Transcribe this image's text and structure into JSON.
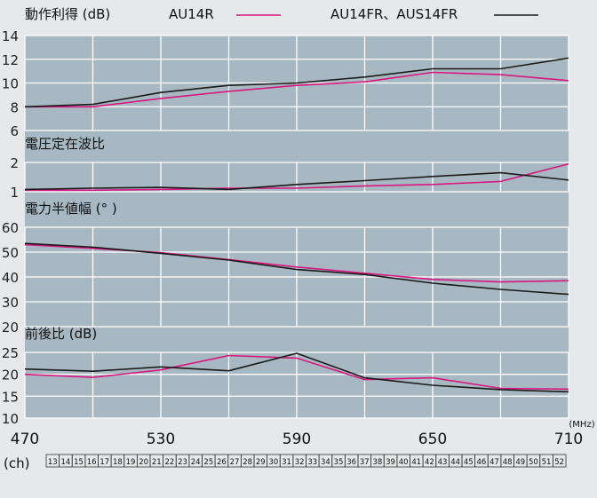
{
  "chart_data": {
    "type": "line",
    "x_label_unit": "(MHz)",
    "x_ticks": [
      470,
      530,
      590,
      650,
      710
    ],
    "x_range": [
      470,
      710
    ],
    "legend": [
      {
        "label": "AU14R",
        "color": "#d8177e"
      },
      {
        "label": "AU14FR、AUS14FR",
        "color": "#1a1a1a"
      }
    ],
    "channel_label": "(ch)",
    "channels": [
      "13",
      "14",
      "15",
      "16",
      "17",
      "18",
      "19",
      "20",
      "21",
      "22",
      "23",
      "24",
      "25",
      "26",
      "27",
      "28",
      "29",
      "30",
      "31",
      "32",
      "33",
      "34",
      "35",
      "36",
      "37",
      "38",
      "39",
      "40",
      "41",
      "42",
      "43",
      "44",
      "45",
      "46",
      "47",
      "48",
      "49",
      "50",
      "51",
      "52"
    ],
    "x": [
      470,
      500,
      530,
      560,
      590,
      620,
      650,
      680,
      710
    ],
    "panels": [
      {
        "title": "動作利得 (dB)",
        "ylim": [
          6,
          14
        ],
        "y_ticks": [
          6,
          8,
          10,
          12,
          14
        ],
        "series": [
          {
            "name": "AU14R",
            "color": "#d8177e",
            "values": [
              8.0,
              8.0,
              8.7,
              9.3,
              9.8,
              10.1,
              10.9,
              10.7,
              10.2
            ]
          },
          {
            "name": "AU14FR、AUS14FR",
            "color": "#1a1a1a",
            "values": [
              8.0,
              8.2,
              9.2,
              9.8,
              10.0,
              10.5,
              11.2,
              11.2,
              12.1
            ]
          }
        ]
      },
      {
        "title": "電圧定在波比",
        "ylim": [
          1,
          2
        ],
        "y_ticks": [
          1,
          2
        ],
        "series": [
          {
            "name": "AU14R",
            "color": "#d8177e",
            "values": [
              1.05,
              1.05,
              1.08,
              1.12,
              1.12,
              1.2,
              1.25,
              1.35,
              1.95
            ]
          },
          {
            "name": "AU14FR、AUS14FR",
            "color": "#1a1a1a",
            "values": [
              1.08,
              1.12,
              1.15,
              1.08,
              1.25,
              1.38,
              1.52,
              1.65,
              1.4
            ]
          }
        ]
      },
      {
        "title": "電力半値幅 (° )",
        "ylim": [
          20,
          60
        ],
        "y_ticks": [
          20,
          30,
          40,
          50,
          60
        ],
        "series": [
          {
            "name": "AU14R",
            "color": "#d8177e",
            "values": [
              53.0,
              51.5,
              49.8,
              47.0,
              44.0,
              41.5,
              39.0,
              38.0,
              38.5
            ]
          },
          {
            "name": "AU14FR、AUS14FR",
            "color": "#1a1a1a",
            "values": [
              53.5,
              52.0,
              49.5,
              46.8,
              43.0,
              41.0,
              37.5,
              35.0,
              33.0
            ]
          }
        ]
      },
      {
        "title": "前後比 (dB)",
        "ylim": [
          10,
          25
        ],
        "y_ticks": [
          10,
          15,
          20,
          25
        ],
        "series": [
          {
            "name": "AU14R",
            "color": "#d8177e",
            "values": [
              20.0,
              19.3,
              21.0,
              24.3,
              23.7,
              18.8,
              19.2,
              16.8,
              16.6
            ]
          },
          {
            "name": "AU14FR、AUS14FR",
            "color": "#1a1a1a",
            "values": [
              21.2,
              20.7,
              21.7,
              20.8,
              24.8,
              19.2,
              17.5,
              16.5,
              16.0
            ]
          }
        ]
      }
    ]
  }
}
